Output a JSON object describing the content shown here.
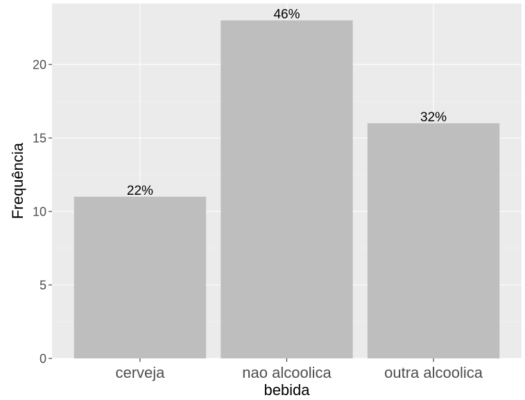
{
  "chart_data": {
    "type": "bar",
    "title": "",
    "xlabel": "bebida",
    "ylabel": "Frequência",
    "categories": [
      "cerveja",
      "nao alcoolica",
      "outra alcoolica"
    ],
    "values": [
      11,
      23,
      16
    ],
    "data_labels": [
      "22%",
      "46%",
      "32%"
    ],
    "ylim": [
      0,
      24.15
    ],
    "y_ticks": [
      0,
      5,
      10,
      15,
      20
    ],
    "y_tick_labels": [
      "0",
      "5",
      "10",
      "15",
      "20"
    ],
    "grid": true,
    "legend": "none",
    "colors": {
      "panel_background": "#ebebeb",
      "grid_major": "#ffffff",
      "grid_minor": "#f5f5f5",
      "bar_fill": "#bebebe",
      "tick_text": "#4d4d4d",
      "tick_mark": "#333333",
      "text": "#000000"
    }
  }
}
